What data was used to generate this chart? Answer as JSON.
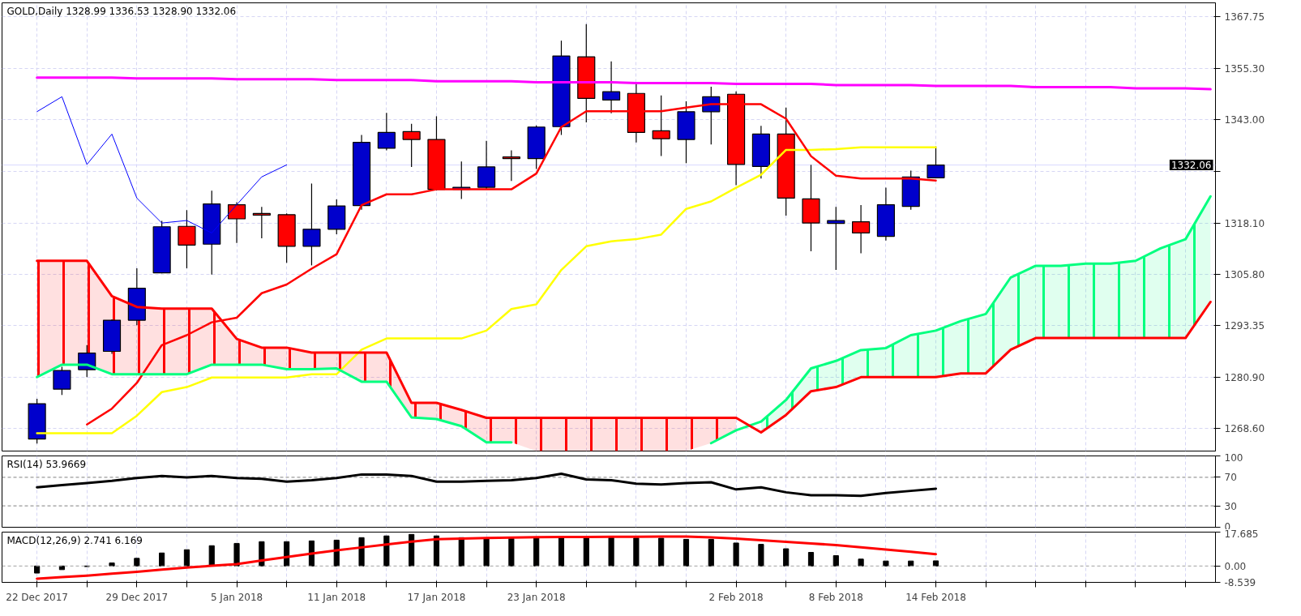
{
  "chart_data": [
    {
      "type": "candlestick",
      "title": "GOLD,Daily 1328.99 1336.53 1328.90 1332.06",
      "ohlc": [
        [
          1266.1,
          1275.8,
          1265.0,
          1274.6
        ],
        [
          1278.1,
          1283.5,
          1276.7,
          1282.6
        ],
        [
          1282.8,
          1288.7,
          1281.0,
          1286.8
        ],
        [
          1287.2,
          1294.9,
          1286.6,
          1294.7
        ],
        [
          1294.7,
          1307.2,
          1293.5,
          1302.4
        ],
        [
          1306.1,
          1318.6,
          1306.0,
          1317.2
        ],
        [
          1317.3,
          1321.2,
          1307.2,
          1312.8
        ],
        [
          1313.0,
          1325.9,
          1305.7,
          1322.7
        ],
        [
          1322.5,
          1323.1,
          1313.3,
          1319.1
        ],
        [
          1320.4,
          1322.0,
          1314.4,
          1320.0
        ],
        [
          1320.1,
          1320.4,
          1308.5,
          1312.5
        ],
        [
          1312.5,
          1327.6,
          1307.9,
          1316.6
        ],
        [
          1316.6,
          1323.8,
          1315.4,
          1322.2
        ],
        [
          1322.3,
          1339.3,
          1321.3,
          1337.5
        ],
        [
          1336.1,
          1344.6,
          1335.6,
          1339.9
        ],
        [
          1340.1,
          1342.0,
          1331.6,
          1338.2
        ],
        [
          1338.2,
          1343.8,
          1325.9,
          1326.2
        ],
        [
          1326.2,
          1332.9,
          1323.9,
          1326.7
        ],
        [
          1326.7,
          1337.9,
          1326.2,
          1331.6
        ],
        [
          1334.0,
          1335.6,
          1328.2,
          1333.6
        ],
        [
          1333.6,
          1341.6,
          1331.1,
          1341.2
        ],
        [
          1341.3,
          1362.0,
          1339.3,
          1358.3
        ],
        [
          1358.1,
          1366.0,
          1342.3,
          1348.1
        ],
        [
          1347.7,
          1357.0,
          1344.5,
          1349.7
        ],
        [
          1349.3,
          1352.1,
          1337.5,
          1339.9
        ],
        [
          1340.3,
          1348.8,
          1334.2,
          1338.4
        ],
        [
          1338.2,
          1347.4,
          1332.5,
          1344.9
        ],
        [
          1344.9,
          1350.9,
          1337.0,
          1348.5
        ],
        [
          1349.1,
          1349.8,
          1327.2,
          1332.2
        ],
        [
          1331.7,
          1341.5,
          1328.8,
          1339.5
        ],
        [
          1339.5,
          1345.9,
          1319.9,
          1324.1
        ],
        [
          1323.9,
          1332.1,
          1311.3,
          1318.1
        ],
        [
          1318.0,
          1322.0,
          1306.8,
          1318.7
        ],
        [
          1318.4,
          1322.4,
          1310.8,
          1315.7
        ],
        [
          1314.9,
          1326.6,
          1313.9,
          1322.5
        ],
        [
          1322.1,
          1330.7,
          1321.3,
          1329.2
        ],
        [
          1328.99,
          1336.53,
          1328.9,
          1332.06
        ],
        null,
        null,
        null,
        null,
        null,
        null,
        null,
        null,
        null,
        null,
        null
      ],
      "colors": [
        "#0000cc",
        "#0000cc",
        "#0000cc",
        "#0000cc",
        "#0000cc",
        "#0000cc",
        "#ff0000",
        "#0000cc",
        "#ff0000",
        "#ff0000",
        "#ff0000",
        "#0000cc",
        "#0000cc",
        "#0000cc",
        "#0000cc",
        "#ff0000",
        "#ff0000",
        "#0000cc",
        "#0000cc",
        "#ff0000",
        "#0000cc",
        "#0000cc",
        "#ff0000",
        "#0000cc",
        "#ff0000",
        "#ff0000",
        "#0000cc",
        "#0000cc",
        "#ff0000",
        "#0000cc",
        "#ff0000",
        "#ff0000",
        "#0000cc",
        "#ff0000",
        "#0000cc",
        "#0000cc",
        "#0000cc",
        null,
        null,
        null,
        null,
        null,
        null,
        null,
        null,
        null,
        null,
        null
      ],
      "series": [
        {
          "type": "line",
          "color": "#ff00ff",
          "values": [
            1353.1,
            1353.1,
            1353.1,
            1353.1,
            1352.9,
            1352.9,
            1352.9,
            1352.9,
            1352.7,
            1352.7,
            1352.7,
            1352.7,
            1352.5,
            1352.5,
            1352.5,
            1352.5,
            1352.2,
            1352.2,
            1352.2,
            1352.2,
            1352.0,
            1352.0,
            1352.0,
            1352.0,
            1351.8,
            1351.8,
            1351.8,
            1351.8,
            1351.6,
            1351.6,
            1351.6,
            1351.6,
            1351.3,
            1351.3,
            1351.3,
            1351.3,
            1351.1,
            1351.1,
            1351.1,
            1351.1,
            1350.8,
            1350.8,
            1350.8,
            1350.8,
            1350.5,
            1350.5,
            1350.5,
            1350.3
          ]
        },
        {
          "type": "line",
          "color": "#0000ff",
          "values": [
            1344.9,
            1348.5,
            1332.2,
            1339.5,
            1324.1,
            1318.1,
            1318.7,
            1315.7,
            1322.5,
            1329.2,
            1332.1,
            null,
            null,
            null,
            null,
            null,
            null,
            null,
            null,
            null,
            null,
            null,
            null,
            null,
            null,
            null,
            null,
            null,
            null,
            null,
            null,
            null,
            null,
            null,
            null,
            null,
            null,
            null,
            null,
            null,
            null,
            null,
            null,
            null,
            null,
            null,
            null,
            null
          ]
        },
        {
          "type": "line",
          "color": "#ffff00",
          "values": [
            1267.5,
            1267.5,
            1267.5,
            1267.5,
            1271.7,
            1277.4,
            1278.6,
            1280.9,
            1280.9,
            1280.9,
            1280.9,
            1281.7,
            1281.7,
            1287.6,
            1290.3,
            1290.3,
            1290.3,
            1290.3,
            1292.2,
            1297.4,
            1298.5,
            1306.8,
            1312.5,
            1313.7,
            1314.2,
            1315.3,
            1321.5,
            1323.3,
            1326.6,
            1329.7,
            1335.7,
            1335.7,
            1335.9,
            1336.3,
            1336.3,
            1336.3,
            1336.3,
            null,
            null,
            null,
            null,
            null,
            null,
            null,
            null,
            null,
            null,
            null
          ]
        },
        {
          "type": "line",
          "color": "#ff0000",
          "values": [
            null,
            null,
            1269.6,
            1273.4,
            1279.6,
            1288.7,
            1291.1,
            1294.2,
            1295.3,
            1301.2,
            1303.3,
            1307.1,
            1310.6,
            1322.4,
            1325.0,
            1325.0,
            1326.2,
            1326.2,
            1326.2,
            1326.2,
            1330.0,
            1341.2,
            1345.0,
            1345.0,
            1345.0,
            1345.0,
            1345.9,
            1346.7,
            1346.7,
            1346.7,
            1343.2,
            1334.2,
            1329.5,
            1328.8,
            1328.8,
            1328.8,
            1328.3,
            null,
            null,
            null,
            null,
            null,
            null,
            null,
            null,
            null,
            null,
            null
          ]
        },
        {
          "type": "line",
          "color": "#00ff7f",
          "upper": [
            null,
            null,
            null,
            null,
            null,
            null,
            null,
            null,
            null,
            null,
            null,
            null,
            null,
            null,
            null,
            null,
            null,
            null,
            null,
            null,
            null,
            null,
            null,
            null,
            null,
            null,
            null,
            null,
            null,
            1270.3,
            1275.5,
            1283.1,
            1284.9,
            1287.5,
            1288.0,
            1291.1,
            1292.2,
            1294.5,
            1296.2,
            1305.0,
            1307.8,
            1307.8,
            1308.3,
            1308.3,
            1309.0,
            1312.0,
            1314.2,
            1324.5
          ],
          "lower": [
            null,
            null,
            null,
            null,
            null,
            null,
            null,
            null,
            null,
            null,
            null,
            null,
            null,
            null,
            null,
            null,
            null,
            null,
            null,
            null,
            null,
            null,
            null,
            null,
            null,
            null,
            null,
            null,
            null,
            1267.7,
            1271.9,
            1277.6,
            1278.6,
            1281.0,
            1281.0,
            1281.0,
            1281.0,
            1281.9,
            1281.9,
            1287.6,
            1290.4,
            1290.4,
            1290.4,
            1290.4,
            1290.4,
            1290.4,
            1290.4,
            1299.1
          ],
          "values": [
            1281.0,
            1284.0,
            1284.0,
            1281.7,
            1281.7,
            1281.7,
            1281.7,
            1284.0,
            1284.0,
            1284.0,
            1282.9,
            1282.9,
            1283.1,
            1279.9,
            1279.9,
            1271.3,
            1270.9,
            1269.2,
            1265.3,
            1265.3,
            null,
            null,
            null,
            null,
            null,
            null,
            null,
            1265.1,
            1268.2,
            1270.3,
            1275.5,
            1283.1,
            1284.9,
            1287.5,
            1288.0,
            1291.1,
            1292.2,
            1294.5,
            1296.2,
            1305.0,
            1307.8,
            1307.8,
            1308.3,
            1308.3,
            1309.0,
            1312.0,
            1314.2,
            1324.5
          ]
        },
        {
          "type": "line",
          "color": "#ff0000",
          "upper": [
            1309.0,
            1309.0,
            1309.0,
            1300.5,
            1297.9,
            1297.5,
            1297.5,
            1297.5,
            1290.2,
            1288.1,
            1288.1,
            1286.9,
            1286.9,
            1286.9,
            1286.9,
            1274.8,
            1274.8,
            1273.1,
            1271.2,
            1271.2,
            1271.2,
            1271.2,
            1271.2,
            1271.2,
            1271.2,
            1271.2,
            1271.2,
            1271.2,
            1271.2,
            null,
            null,
            null,
            null,
            null,
            null,
            null,
            null,
            null,
            null,
            null,
            null,
            null,
            null,
            null,
            null,
            null,
            null,
            null
          ],
          "lower": [
            1281.0,
            1284.0,
            1284.0,
            1281.7,
            1281.7,
            1281.7,
            1281.7,
            1284.0,
            1284.0,
            1284.0,
            1282.9,
            1282.9,
            1283.1,
            1279.9,
            1279.9,
            1271.3,
            1270.9,
            1269.2,
            1265.3,
            1265.3,
            1263.2,
            1263.2,
            1263.2,
            1263.2,
            1263.2,
            1263.2,
            1263.2,
            1265.1,
            1268.2,
            null,
            null,
            null,
            null,
            null,
            null,
            null,
            null,
            null,
            null,
            null,
            null,
            null,
            null,
            null,
            null,
            null,
            null,
            null
          ],
          "values": [
            1309.0,
            1309.0,
            1309.0,
            1300.5,
            1297.9,
            1297.5,
            1297.5,
            1297.5,
            1290.2,
            1288.1,
            1288.1,
            1286.9,
            1286.9,
            1286.9,
            1286.9,
            1274.8,
            1274.8,
            1273.1,
            1271.2,
            1271.2,
            1271.2,
            1271.2,
            1271.2,
            1271.2,
            1271.2,
            1271.2,
            1271.2,
            1271.2,
            1271.2,
            1267.7,
            1271.9,
            1277.6,
            1278.6,
            1281.0,
            1281.0,
            1281.0,
            1281.0,
            1281.9,
            1281.9,
            1287.6,
            1290.4,
            1290.4,
            1290.4,
            1290.4,
            1290.4,
            1290.4,
            1290.4,
            1299.1
          ]
        }
      ],
      "ylim": [
        1263.2,
        1371.1
      ],
      "yticks": [
        {
          "value": 1268.6,
          "label": "1268.60"
        },
        {
          "value": 1280.9,
          "label": "1280.90"
        },
        1293.35,
        {
          "value": 1305.8,
          "label": "1305.80"
        },
        {
          "value": 1318.1,
          "label": "1318.10"
        },
        {
          "value": 1330.55,
          "label": null
        },
        {
          "value": 1343.0,
          "label": "1343.00"
        },
        {
          "value": 1355.3,
          "label": "1355.30"
        },
        1367.75
      ],
      "ref_lines": [
        {
          "axis": "y",
          "value": 1332.06,
          "label": "1332.06",
          "color": "#d8d8ff"
        }
      ],
      "grid": true,
      "tick_labels": "y"
    },
    {
      "type": "line",
      "title": "RSI(14) 53.9669",
      "series": [
        {
          "color": "#000000",
          "values": [
            56,
            59,
            62,
            65,
            69,
            72,
            70,
            72,
            69,
            68,
            64,
            66,
            69,
            74,
            74,
            72,
            64,
            64,
            65,
            66,
            69,
            75,
            67,
            66,
            61,
            60,
            62,
            63,
            53,
            56,
            49,
            45,
            45,
            44,
            48,
            51,
            54,
            null,
            null,
            null,
            null,
            null,
            null,
            null,
            null,
            null,
            null,
            null
          ]
        }
      ],
      "ylim": [
        0,
        100
      ],
      "yticks": [
        0,
        30,
        70,
        100
      ],
      "ref_lines": [
        {
          "axis": "y",
          "value": 70,
          "color": "#808080",
          "line_style": "dashed"
        },
        {
          "axis": "y",
          "value": 30,
          "color": "#808080",
          "line_style": "dashed"
        }
      ],
      "grid": "x",
      "tick_labels": "y"
    },
    {
      "type": "bar",
      "title": "MACD(12,26,9) 2.741 6.169",
      "categories": [
        "22 Dec 2017",
        null,
        null,
        null,
        "29 Dec 2017",
        null,
        null,
        null,
        "5 Jan 2018",
        null,
        null,
        null,
        "11 Jan 2018",
        null,
        null,
        null,
        "17 Jan 2018",
        null,
        null,
        null,
        "23 Jan 2018",
        null,
        null,
        null,
        null,
        null,
        null,
        null,
        "2 Feb 2018",
        null,
        null,
        null,
        "8 Feb 2018",
        null,
        null,
        null,
        "14 Feb 2018",
        null,
        null,
        null,
        null,
        null,
        null,
        null,
        null,
        null,
        null,
        null
      ],
      "series": [
        {
          "type": "bar",
          "color": "#000000",
          "values": [
            -3.7,
            -1.9,
            -0.3,
            1.6,
            4.0,
            6.8,
            8.5,
            10.6,
            11.8,
            12.7,
            12.7,
            13.1,
            13.5,
            14.8,
            15.7,
            16.5,
            15.7,
            14.8,
            14.6,
            14.4,
            14.8,
            14.8,
            14.8,
            14.8,
            14.6,
            14.5,
            13.9,
            13.9,
            12.0,
            11.3,
            9.0,
            7.1,
            5.4,
            3.6,
            2.6,
            2.6,
            2.7,
            null,
            null,
            null,
            null,
            null,
            null,
            null,
            null,
            null,
            null,
            null
          ]
        },
        {
          "type": "line",
          "color": "#ff0000",
          "values": [
            -6.6,
            -5.8,
            -5.0,
            -4.0,
            -3.0,
            -1.9,
            -0.8,
            0.1,
            1.0,
            2.9,
            4.7,
            6.5,
            8.2,
            9.7,
            11.2,
            12.7,
            14.0,
            14.3,
            14.6,
            14.8,
            15.0,
            15.1,
            15.2,
            15.3,
            15.3,
            15.4,
            15.4,
            14.9,
            14.3,
            13.5,
            12.6,
            11.8,
            10.9,
            9.8,
            8.6,
            7.4,
            6.2,
            null,
            null,
            null,
            null,
            null,
            null,
            null,
            null,
            null,
            null,
            null
          ]
        }
      ],
      "ylim": [
        -8.539,
        17.685
      ],
      "yticks": [
        -8.539,
        {
          "value": 0,
          "label": "0.00"
        },
        17.685
      ],
      "ref_lines": [
        {
          "axis": "y",
          "value": 0,
          "color": "#a0a0a0",
          "line_style": "dashed"
        }
      ],
      "grid": "x"
    }
  ]
}
